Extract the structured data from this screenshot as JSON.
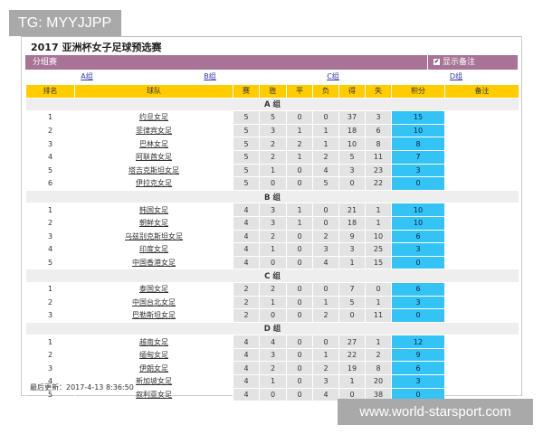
{
  "watermarks": {
    "top": "TG: MYYJJPP",
    "bottom": "www.world-starsport.com"
  },
  "title": "2017 亚洲杯女子足球预选赛",
  "section": "分组赛",
  "show_notes": {
    "label": "显示备注",
    "checked": true
  },
  "group_links": [
    "A组",
    "B组",
    "C组",
    "D组"
  ],
  "columns": [
    "排名",
    "球队",
    "赛",
    "胜",
    "平",
    "负",
    "得",
    "失",
    "积分",
    "备注"
  ],
  "colors": {
    "header": "#ffcc00",
    "bar": "#a87397",
    "points": "#33c3f5"
  },
  "groups": [
    {
      "name": "A 组",
      "rows": [
        [
          1,
          "约旦女足",
          5,
          5,
          0,
          0,
          37,
          3,
          15
        ],
        [
          2,
          "菲律宾女足",
          5,
          3,
          1,
          1,
          18,
          6,
          10
        ],
        [
          3,
          "巴林女足",
          5,
          2,
          2,
          1,
          10,
          8,
          8
        ],
        [
          4,
          "阿联酋女足",
          5,
          2,
          1,
          2,
          5,
          11,
          7
        ],
        [
          5,
          "塔吉克斯坦女足",
          5,
          1,
          0,
          4,
          3,
          23,
          3
        ],
        [
          6,
          "伊拉克女足",
          5,
          0,
          0,
          5,
          0,
          22,
          0
        ]
      ]
    },
    {
      "name": "B 组",
      "rows": [
        [
          1,
          "韩国女足",
          4,
          3,
          1,
          0,
          21,
          1,
          10
        ],
        [
          2,
          "朝鲜女足",
          4,
          3,
          1,
          0,
          18,
          1,
          10
        ],
        [
          3,
          "乌兹别克斯坦女足",
          4,
          2,
          0,
          2,
          9,
          10,
          6
        ],
        [
          4,
          "印度女足",
          4,
          1,
          0,
          3,
          3,
          25,
          3
        ],
        [
          5,
          "中国香港女足",
          4,
          0,
          0,
          4,
          1,
          15,
          0
        ]
      ]
    },
    {
      "name": "C 组",
      "rows": [
        [
          1,
          "泰国女足",
          2,
          2,
          0,
          0,
          7,
          0,
          6
        ],
        [
          2,
          "中国台北女足",
          2,
          1,
          0,
          1,
          5,
          1,
          3
        ],
        [
          3,
          "巴勒斯坦女足",
          2,
          0,
          0,
          2,
          0,
          11,
          0
        ]
      ]
    },
    {
      "name": "D 组",
      "rows": [
        [
          1,
          "越南女足",
          4,
          4,
          0,
          0,
          27,
          1,
          12
        ],
        [
          2,
          "缅甸女足",
          4,
          3,
          0,
          1,
          22,
          2,
          9
        ],
        [
          3,
          "伊朗女足",
          4,
          2,
          0,
          2,
          19,
          8,
          6
        ],
        [
          4,
          "新加坡女足",
          4,
          1,
          0,
          3,
          1,
          20,
          3
        ],
        [
          5,
          "叙利亚女足",
          4,
          0,
          0,
          4,
          0,
          38,
          0
        ]
      ]
    }
  ],
  "footer": "最后更新：2017-4-13 8:36:50"
}
